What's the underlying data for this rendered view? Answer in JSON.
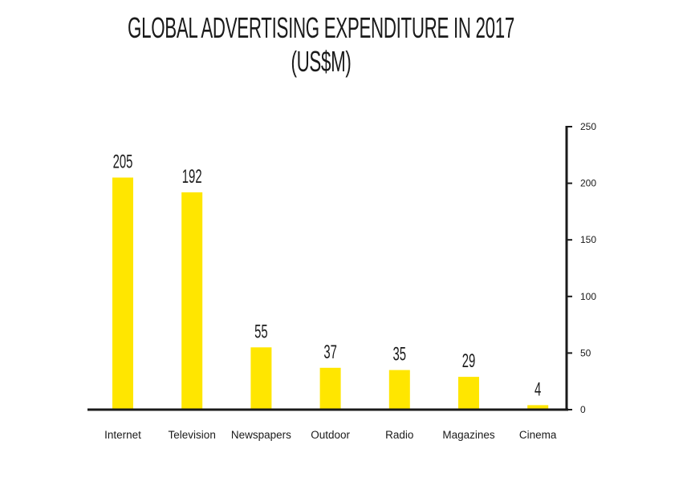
{
  "chart_data": {
    "type": "bar",
    "title": "GLOBAL ADVERTISING EXPENDITURE IN 2017 (US$M)",
    "categories": [
      "Internet",
      "Television",
      "Newspapers",
      "Outdoor",
      "Radio",
      "Magazines",
      "Cinema"
    ],
    "values": [
      205,
      192,
      55,
      37,
      35,
      29,
      4
    ],
    "data_labels": [
      "205",
      "192",
      "55",
      "37",
      "35",
      "29",
      "4"
    ],
    "xlabel": "",
    "ylabel": "",
    "ylim": [
      0,
      250
    ],
    "yticks": [
      0,
      50,
      100,
      150,
      200,
      250
    ],
    "ytick_labels": [
      "0",
      "50",
      "100",
      "150",
      "200",
      "250"
    ],
    "y_axis_position": "right",
    "grid": false,
    "legend": "none",
    "colors": {
      "bar": "#FFE600",
      "axis": "#1a1a1a",
      "text": "#1a1a1a"
    }
  }
}
